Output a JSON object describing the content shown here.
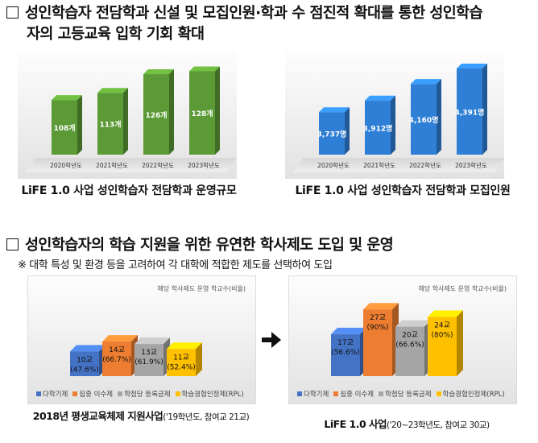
{
  "section1": {
    "line1": "성인학습자 전담학과 신설 및 모집인원·학과 수 점진적 확대를 통한 성인학습",
    "line2": "자의 고등교육 입학 기회 확대"
  },
  "chart_data": [
    {
      "type": "bar",
      "title": "LiFE 1.0 사업 성인학습자 전담학과 운영규모",
      "categories": [
        "2020학년도",
        "2021학년도",
        "2022학년도",
        "2023학년도"
      ],
      "values": [
        108,
        113,
        126,
        128
      ],
      "labels": [
        "108개",
        "113개",
        "126개",
        "128개"
      ],
      "color": "#5b9a35"
    },
    {
      "type": "bar",
      "title": "LiFE 1.0 사업 성인학습자 전담학과 모집인원",
      "categories": [
        "2020학년도",
        "2021학년도",
        "2022학년도",
        "2023학년도"
      ],
      "values": [
        3737,
        3912,
        4160,
        4391
      ],
      "labels": [
        "3,737명",
        "3,912명",
        "4,160명",
        "4,391명"
      ],
      "color": "#2f7fd6"
    },
    {
      "type": "bar",
      "title": "2018년 평생교육체제 지원사업",
      "subtitle": "해당 학사제도 운영 학교수(비율)",
      "categories": [
        "다학기제",
        "집중 이수제",
        "학점당 등록금제",
        "학습경험인정제(RPL)"
      ],
      "values": [
        10,
        14,
        13,
        11
      ],
      "labels": [
        "10교\n(47.6%)",
        "14교\n(66.7%)",
        "13교\n(61.9%)",
        "11교\n(52.4%)"
      ],
      "colors": [
        "#4472c4",
        "#ed7d31",
        "#a5a5a5",
        "#ffc000"
      ]
    },
    {
      "type": "bar",
      "title": "LiFE 1.0 사업",
      "subtitle": "해당 학사제도 운영 학교수(비율)",
      "categories": [
        "다학기제",
        "집중 이수제",
        "학점당 등록금제",
        "학습경험인정제(RPL)"
      ],
      "values": [
        17,
        27,
        20,
        24
      ],
      "labels": [
        "17교\n(56.6%)",
        "27교\n(90%)",
        "20교\n(66.6%)",
        "24교\n(80%)"
      ],
      "colors": [
        "#4472c4",
        "#ed7d31",
        "#a5a5a5",
        "#ffc000"
      ]
    }
  ],
  "captions": {
    "c1": "LiFE  1.0  사업 성인학습자 전담학과 운영규모",
    "c2": "LiFE  1.0  사업 성인학습자 전담학과 모집인원",
    "c3_main": "2018년 평생교육체제 지원사업",
    "c3_sub": "('19학년도, 참여교 21교)",
    "c4_main": "LiFE 1.0 사업",
    "c4_sub": "('20~23학년도, 참여교 30교)"
  },
  "section2": {
    "title": "성인학습자의 학습 지원을 위한 유연한 학사제도 도입 및 운영",
    "note": "※ 대학 특성 및 환경 등을 고려하여 각 대학에 적합한 제도를 선택하여 도입"
  },
  "arrow_icon": "right-arrow-icon"
}
